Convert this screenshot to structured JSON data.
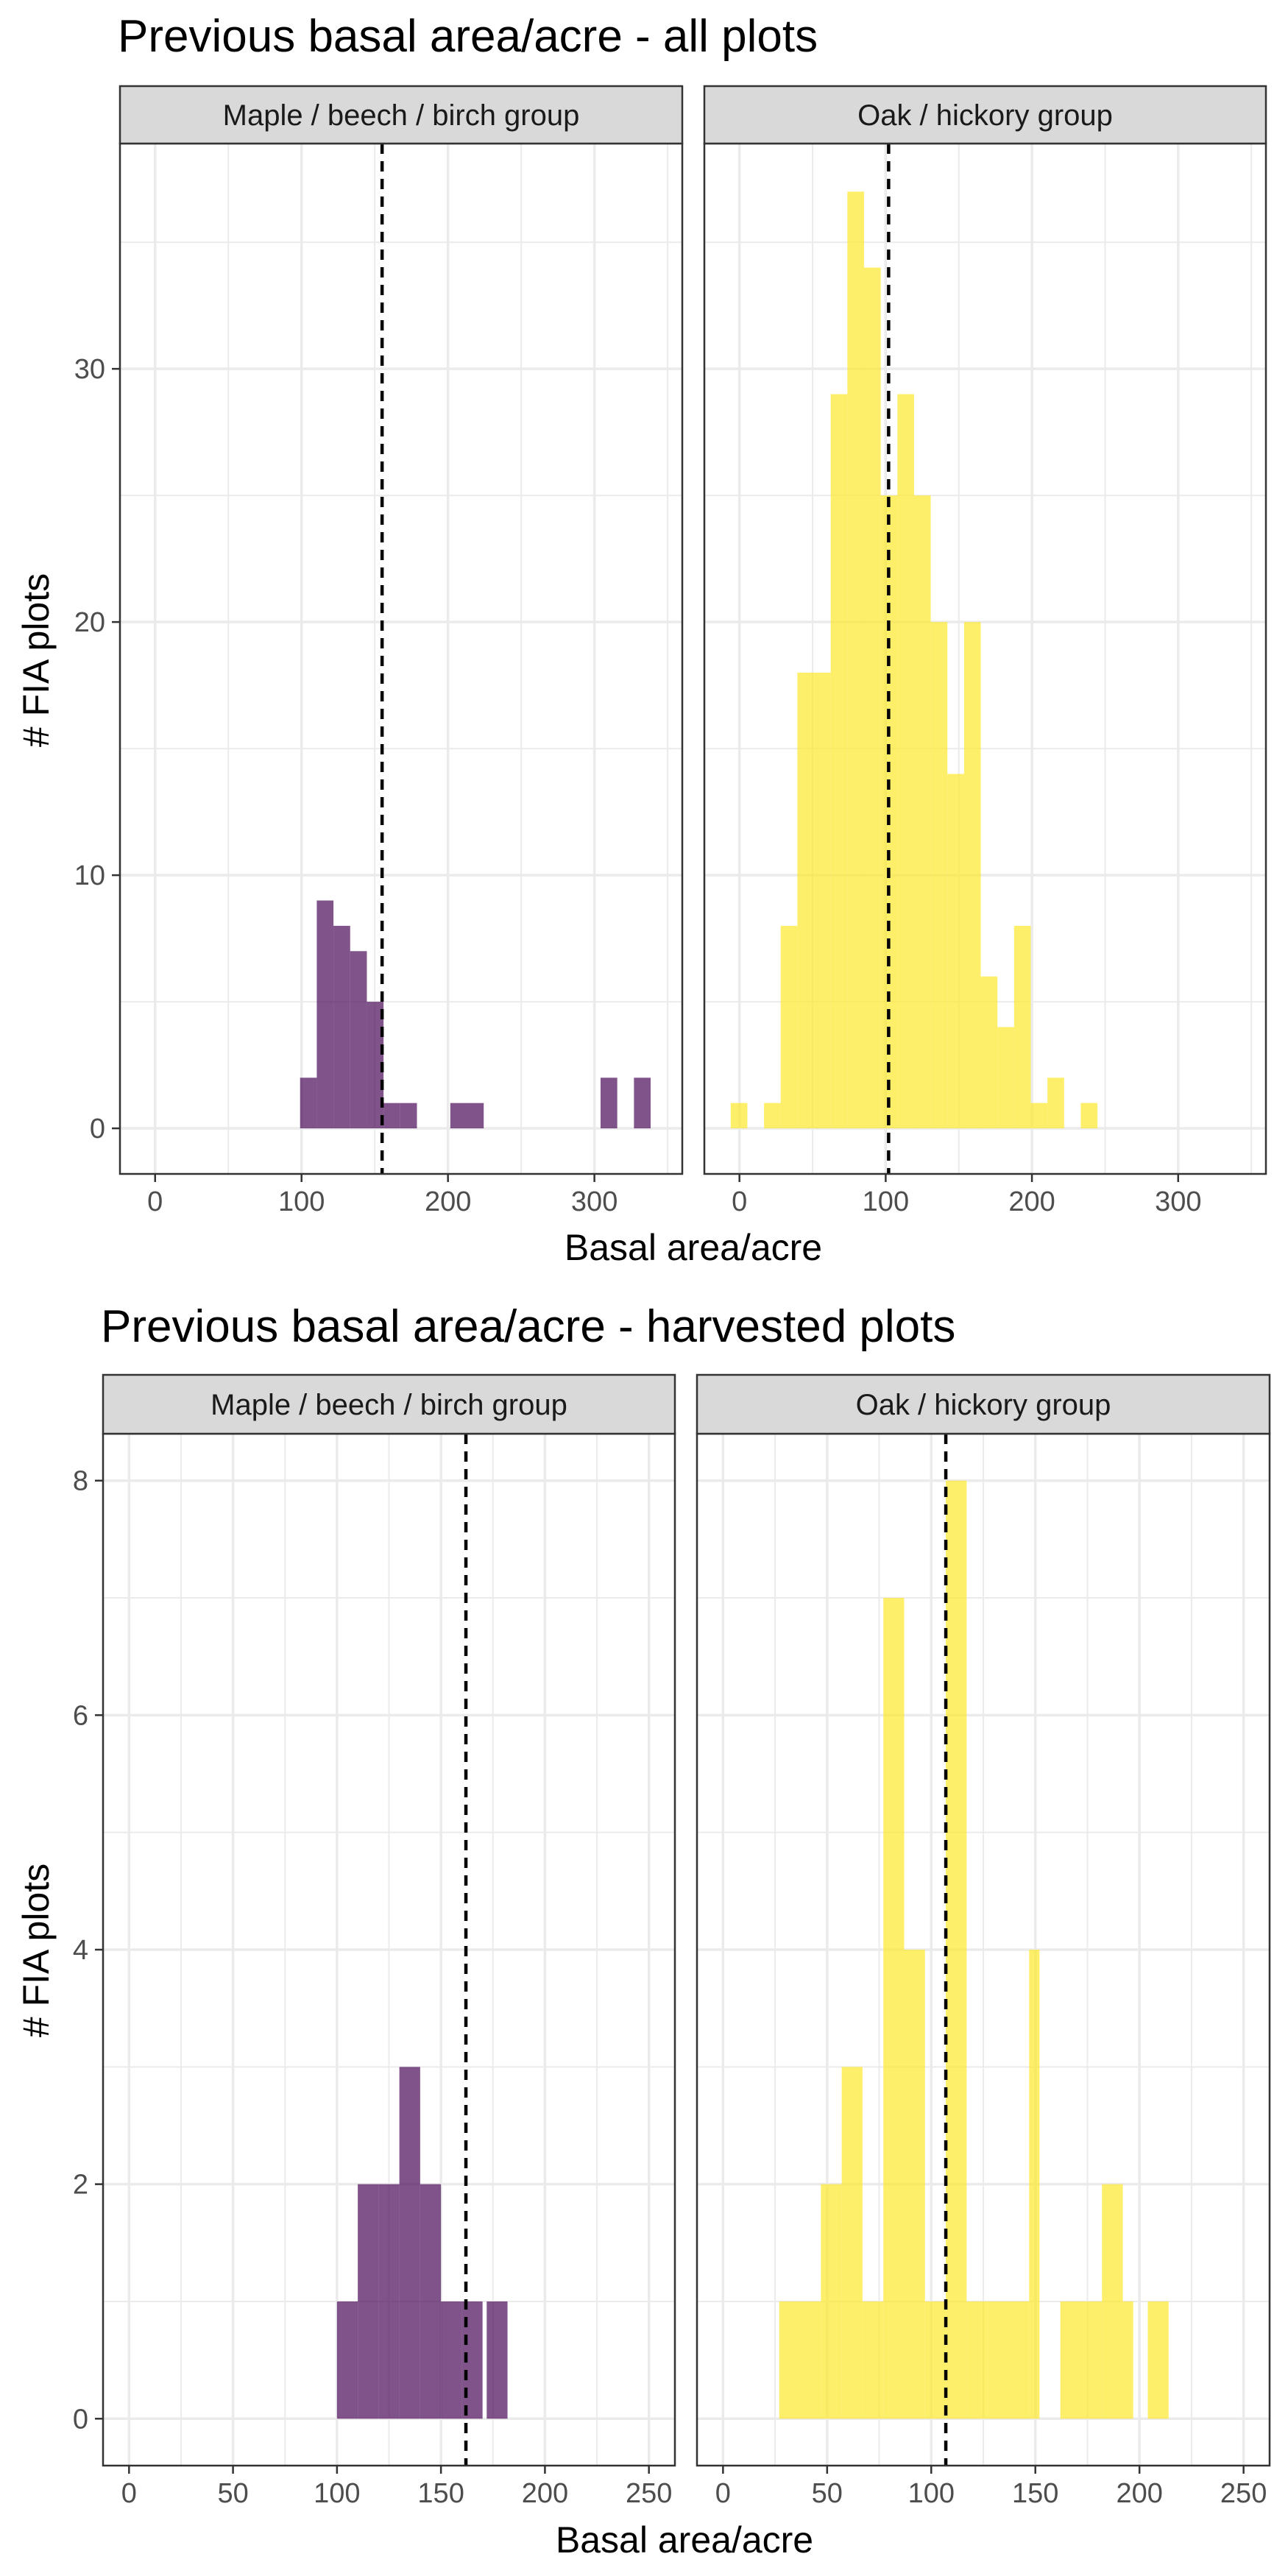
{
  "figures": [
    {
      "title": "Previous basal area/acre - all plots",
      "xlabel": "Basal area/acre",
      "ylabel": "# FIA plots"
    },
    {
      "title": "Previous basal area/acre - harvested plots",
      "xlabel": "Basal area/acre",
      "ylabel": "# FIA plots"
    }
  ],
  "colors": {
    "maple": "#440154",
    "oak": "#fde725",
    "strip_fill": "#d9d9d9",
    "grid": "#ebebeb",
    "border": "#333333",
    "mean_line": "#000000"
  },
  "chart_data": [
    {
      "type": "bar",
      "title": "Previous basal area/acre - all plots",
      "xlabel": "Basal area/acre",
      "ylabel": "# FIA plots",
      "xlim": [
        -24,
        360
      ],
      "ylim": [
        -1.8,
        38.9
      ],
      "xticks": [
        0,
        100,
        200,
        300
      ],
      "yticks": [
        0,
        10,
        20,
        30
      ],
      "grid": true,
      "bin_width": 11.4,
      "panels": [
        {
          "name": "Maple / beech / birch group",
          "color_key": "maple",
          "mean_line": 155,
          "bins": [
            {
              "x0": 99,
              "x1": 110.4,
              "count": 2
            },
            {
              "x0": 110.4,
              "x1": 121.8,
              "count": 9
            },
            {
              "x0": 121.8,
              "x1": 133.2,
              "count": 8
            },
            {
              "x0": 133.2,
              "x1": 144.6,
              "count": 7
            },
            {
              "x0": 144.6,
              "x1": 156,
              "count": 5
            },
            {
              "x0": 156,
              "x1": 167.4,
              "count": 1
            },
            {
              "x0": 167.4,
              "x1": 178.8,
              "count": 1
            },
            {
              "x0": 201.6,
              "x1": 213,
              "count": 1
            },
            {
              "x0": 213,
              "x1": 224.4,
              "count": 1
            },
            {
              "x0": 304.2,
              "x1": 315.6,
              "count": 2
            },
            {
              "x0": 327,
              "x1": 338.4,
              "count": 2
            }
          ]
        },
        {
          "name": "Oak / hickory group",
          "color_key": "oak",
          "mean_line": 102,
          "bins": [
            {
              "x0": -6,
              "x1": 5.4,
              "count": 1
            },
            {
              "x0": 16.8,
              "x1": 28.2,
              "count": 1
            },
            {
              "x0": 28.2,
              "x1": 39.6,
              "count": 8
            },
            {
              "x0": 39.6,
              "x1": 51,
              "count": 18
            },
            {
              "x0": 51,
              "x1": 62.4,
              "count": 18
            },
            {
              "x0": 62.4,
              "x1": 73.8,
              "count": 29
            },
            {
              "x0": 73.8,
              "x1": 85.2,
              "count": 37
            },
            {
              "x0": 85.2,
              "x1": 96.6,
              "count": 34
            },
            {
              "x0": 96.6,
              "x1": 108,
              "count": 25
            },
            {
              "x0": 108,
              "x1": 119.4,
              "count": 29
            },
            {
              "x0": 119.4,
              "x1": 130.8,
              "count": 25
            },
            {
              "x0": 130.8,
              "x1": 142.2,
              "count": 20
            },
            {
              "x0": 142.2,
              "x1": 153.6,
              "count": 14
            },
            {
              "x0": 153.6,
              "x1": 165,
              "count": 20
            },
            {
              "x0": 165,
              "x1": 176.4,
              "count": 6
            },
            {
              "x0": 176.4,
              "x1": 187.8,
              "count": 4
            },
            {
              "x0": 187.8,
              "x1": 199.2,
              "count": 8
            },
            {
              "x0": 199.2,
              "x1": 210.6,
              "count": 1
            },
            {
              "x0": 210.6,
              "x1": 222,
              "count": 2
            },
            {
              "x0": 233.4,
              "x1": 244.8,
              "count": 1
            }
          ]
        }
      ]
    },
    {
      "type": "bar",
      "title": "Previous basal area/acre - harvested plots",
      "xlabel": "Basal area/acre",
      "ylabel": "# FIA plots",
      "xlim": [
        -12.5,
        262.5
      ],
      "ylim": [
        -0.4,
        8.4
      ],
      "xticks": [
        0,
        50,
        100,
        150,
        200,
        250
      ],
      "yticks": [
        0,
        2,
        4,
        6,
        8
      ],
      "grid": true,
      "bin_width": 10,
      "panels": [
        {
          "name": "Maple / beech / birch group",
          "color_key": "maple",
          "mean_line": 162,
          "bins": [
            {
              "x0": 100,
              "x1": 110,
              "count": 1
            },
            {
              "x0": 110,
              "x1": 120,
              "count": 2
            },
            {
              "x0": 120,
              "x1": 130,
              "count": 2
            },
            {
              "x0": 130,
              "x1": 140,
              "count": 3
            },
            {
              "x0": 140,
              "x1": 150,
              "count": 2
            },
            {
              "x0": 150,
              "x1": 160,
              "count": 1
            },
            {
              "x0": 160,
              "x1": 170,
              "count": 1
            },
            {
              "x0": 172,
              "x1": 182,
              "count": 1
            }
          ]
        },
        {
          "name": "Oak / hickory group",
          "color_key": "oak",
          "mean_line": 107,
          "bins": [
            {
              "x0": 27,
              "x1": 37,
              "count": 1
            },
            {
              "x0": 37,
              "x1": 47,
              "count": 1
            },
            {
              "x0": 47,
              "x1": 57,
              "count": 2
            },
            {
              "x0": 57,
              "x1": 67,
              "count": 3
            },
            {
              "x0": 67,
              "x1": 77,
              "count": 1
            },
            {
              "x0": 77,
              "x1": 87,
              "count": 7
            },
            {
              "x0": 87,
              "x1": 97,
              "count": 4
            },
            {
              "x0": 97,
              "x1": 107,
              "count": 1
            },
            {
              "x0": 107,
              "x1": 117,
              "count": 8
            },
            {
              "x0": 117,
              "x1": 127,
              "count": 1
            },
            {
              "x0": 127,
              "x1": 137,
              "count": 1
            },
            {
              "x0": 137,
              "x1": 147,
              "count": 1
            },
            {
              "x0": 147,
              "x1": 152,
              "count": 4
            },
            {
              "x0": 162,
              "x1": 172,
              "count": 1
            },
            {
              "x0": 172,
              "x1": 182,
              "count": 1
            },
            {
              "x0": 182,
              "x1": 192,
              "count": 2
            },
            {
              "x0": 192,
              "x1": 197,
              "count": 1
            },
            {
              "x0": 204,
              "x1": 214,
              "count": 1
            }
          ]
        }
      ]
    }
  ]
}
